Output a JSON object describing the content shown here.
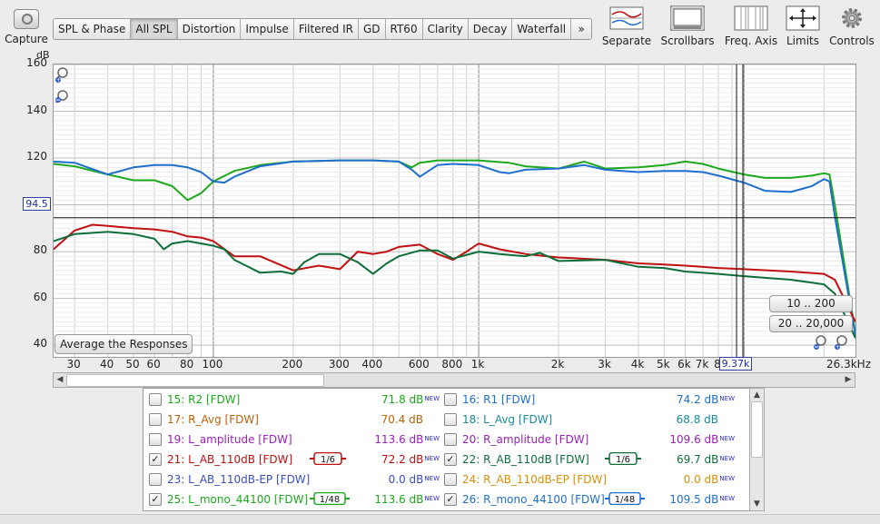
{
  "capture": {
    "label": "Capture"
  },
  "tabs": [
    {
      "label": "SPL & Phase"
    },
    {
      "label": "All SPL",
      "selected": true
    },
    {
      "label": "Distortion"
    },
    {
      "label": "Impulse"
    },
    {
      "label": "Filtered IR"
    },
    {
      "label": "GD"
    },
    {
      "label": "RT60"
    },
    {
      "label": "Clarity"
    },
    {
      "label": "Decay"
    },
    {
      "label": "Waterfall"
    },
    {
      "label": "»"
    }
  ],
  "tools": {
    "separate": "Separate",
    "scrollbars": "Scrollbars",
    "freq_axis": "Freq. Axis",
    "limits": "Limits",
    "controls": "Controls"
  },
  "plot": {
    "y_unit": "dB",
    "x_unit": "26.3kHz",
    "y_ticks": [
      "160",
      "140",
      "120",
      "100",
      "80",
      "60",
      "40"
    ],
    "x_ticks": [
      "30",
      "40",
      "50",
      "60",
      "80",
      "100",
      "200",
      "300",
      "400",
      "600",
      "800",
      "1k",
      "2k",
      "3k",
      "4k",
      "5k",
      "6k",
      "7k",
      "8"
    ],
    "cursor_y": "94.5",
    "cursor_x": "9.37k",
    "average_button": "Average the Responses",
    "range_btn_1": "10 .. 200",
    "range_btn_2": "20 .. 20,000",
    "colors": {
      "green": "#1ea81e",
      "blue": "#1e6fd0",
      "red": "#c01010",
      "darkgreen": "#0e6e3a"
    }
  },
  "chart_data": {
    "type": "line",
    "xlabel": "",
    "ylabel": "dB",
    "x_scale": "log",
    "xlim": [
      25,
      26300
    ],
    "ylim": [
      35,
      160
    ],
    "grid": true,
    "cursor": {
      "y": 94.5,
      "x": 9370
    },
    "series": [
      {
        "name": "25: L_mono_44100 [FDW]",
        "color": "#1ea81e",
        "x": [
          25,
          30,
          40,
          50,
          60,
          70,
          80,
          90,
          100,
          120,
          150,
          200,
          300,
          400,
          500,
          560,
          600,
          700,
          800,
          1000,
          1300,
          1500,
          2000,
          2500,
          3000,
          4000,
          5000,
          6000,
          7000,
          8000,
          10000,
          12000,
          15000,
          18000,
          20000,
          21000,
          22000,
          26300
        ],
        "y": [
          117.5,
          116.5,
          113,
          110.5,
          110.5,
          108,
          102,
          105,
          110,
          114.5,
          117,
          118.5,
          119,
          119,
          118.5,
          116,
          118,
          119,
          119,
          119,
          118,
          116.5,
          115.5,
          118.5,
          115.5,
          116,
          117,
          118.5,
          117.5,
          115.5,
          113,
          111.5,
          111.5,
          112.5,
          113.5,
          113,
          100,
          45
        ]
      },
      {
        "name": "26: R_mono_44100 [FDW]",
        "color": "#1e6fd0",
        "x": [
          25,
          30,
          40,
          50,
          60,
          70,
          80,
          90,
          100,
          110,
          120,
          150,
          200,
          300,
          400,
          500,
          560,
          600,
          700,
          800,
          1000,
          1200,
          1300,
          1500,
          2000,
          2500,
          3000,
          4000,
          5000,
          6000,
          7000,
          8000,
          10000,
          12000,
          15000,
          18000,
          20000,
          21000,
          22000,
          26300
        ],
        "y": [
          118.5,
          118,
          113,
          116,
          117,
          117,
          116,
          114,
          110,
          109.5,
          112,
          116.5,
          118.5,
          119,
          119,
          118.5,
          115,
          112,
          117,
          117.5,
          117,
          114,
          113.5,
          115,
          115.5,
          117,
          115,
          114,
          114.5,
          114.5,
          114,
          112.5,
          109.5,
          106,
          105.5,
          108,
          111,
          110,
          95,
          44
        ]
      },
      {
        "name": "21: L_AB_110dB [FDW]",
        "color": "#c01010",
        "x": [
          25,
          30,
          35,
          40,
          50,
          60,
          70,
          80,
          90,
          100,
          120,
          150,
          200,
          250,
          300,
          350,
          400,
          450,
          500,
          600,
          700,
          800,
          900,
          1000,
          1200,
          1500,
          2000,
          3000,
          4000,
          5000,
          6000,
          8000,
          10000,
          15000,
          20000,
          22000,
          26300
        ],
        "y": [
          81,
          89,
          91.5,
          91,
          90,
          89.5,
          88.5,
          86.5,
          86,
          84.5,
          78,
          78,
          72,
          74,
          72.5,
          80,
          79,
          80,
          82,
          83,
          79,
          76.5,
          80,
          83.5,
          81,
          79,
          77.5,
          76.5,
          75,
          74.5,
          74,
          73,
          72.5,
          71.5,
          70.5,
          68,
          50
        ]
      },
      {
        "name": "22: R_AB_110dB [FDW]",
        "color": "#0e6e3a",
        "x": [
          25,
          30,
          40,
          50,
          60,
          65,
          70,
          80,
          90,
          100,
          110,
          120,
          150,
          180,
          200,
          220,
          250,
          300,
          350,
          400,
          450,
          500,
          600,
          700,
          800,
          1000,
          1200,
          1500,
          1700,
          2000,
          3000,
          4000,
          5000,
          6000,
          8000,
          10000,
          15000,
          20000,
          22000,
          26300
        ],
        "y": [
          84.5,
          87.5,
          88.5,
          87.5,
          85.5,
          81,
          83.5,
          84.5,
          83.5,
          82.5,
          81,
          76.5,
          71,
          71.5,
          70.5,
          75.5,
          79,
          79,
          75.5,
          70.5,
          75,
          78,
          80.5,
          80.5,
          77,
          80,
          79,
          78,
          79.5,
          76,
          76.5,
          73.5,
          73,
          71.5,
          70.5,
          69.5,
          68,
          66,
          62,
          43
        ]
      }
    ]
  },
  "legend": {
    "left": [
      {
        "idx": "15:",
        "name": "R2 [FDW]",
        "value": "71.8 dB",
        "new": true,
        "checked": false,
        "color": "#1ea81e"
      },
      {
        "idx": "17:",
        "name": "R_Avg [FDW]",
        "value": "70.4 dB",
        "new": false,
        "checked": false,
        "color": "#b8620a"
      },
      {
        "idx": "19:",
        "name": "L_amplitude [FDW]",
        "value": "113.6 dB",
        "new": true,
        "checked": false,
        "color": "#9b1fb8"
      },
      {
        "idx": "21:",
        "name": "L_AB_110dB [FDW]",
        "value": "72.2 dB",
        "new": true,
        "checked": true,
        "color": "#c01010",
        "smoothing": "1/6"
      },
      {
        "idx": "23:",
        "name": "L_AB_110dB-EP [FDW]",
        "value": "0.0 dB",
        "new": true,
        "checked": false,
        "color": "#3a4fc0"
      },
      {
        "idx": "25:",
        "name": "L_mono_44100 [FDW]",
        "value": "113.6 dB",
        "new": true,
        "checked": true,
        "color": "#1ea81e",
        "smoothing": "1/48"
      }
    ],
    "right": [
      {
        "idx": "16:",
        "name": "R1 [FDW]",
        "value": "74.2 dB",
        "new": true,
        "checked": false,
        "color": "#1e6fd0"
      },
      {
        "idx": "18:",
        "name": "L_Avg [FDW]",
        "value": "68.8 dB",
        "new": false,
        "checked": false,
        "color": "#1a8a9a"
      },
      {
        "idx": "20:",
        "name": "R_amplitude [FDW]",
        "value": "109.6 dB",
        "new": true,
        "checked": false,
        "color": "#9b1fb8"
      },
      {
        "idx": "22:",
        "name": "R_AB_110dB [FDW]",
        "value": "69.7 dB",
        "new": true,
        "checked": true,
        "color": "#0e6e3a",
        "smoothing": "1/6"
      },
      {
        "idx": "24:",
        "name": "R_AB_110dB-EP [FDW]",
        "value": "0.0 dB",
        "new": true,
        "checked": false,
        "color": "#d8900a"
      },
      {
        "idx": "26:",
        "name": "R_mono_44100 [FDW]",
        "value": "109.5 dB",
        "new": true,
        "checked": true,
        "color": "#1e6fd0",
        "smoothing": "1/48"
      }
    ],
    "new_label": "NEW"
  }
}
